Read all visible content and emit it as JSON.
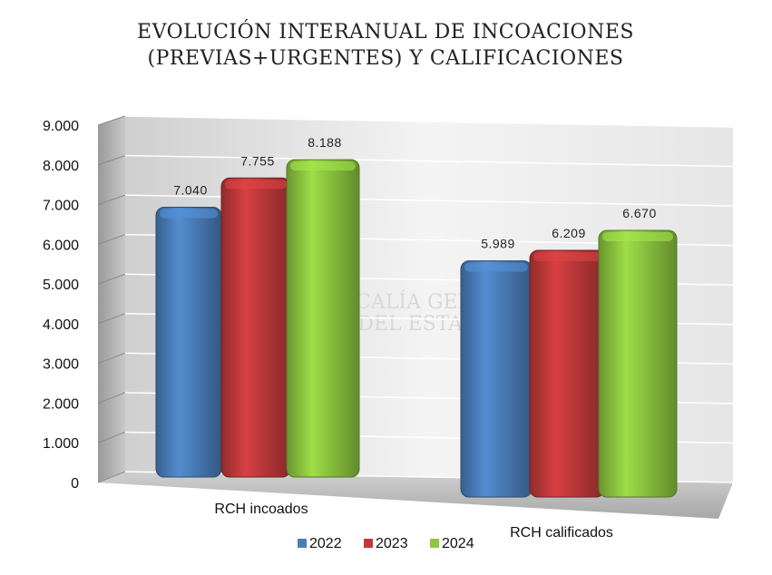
{
  "chart_data": {
    "type": "bar",
    "title_line1": "EVOLUCIÓN INTERANUAL DE INCOACIONES",
    "title_line2": "(PREVIAS+URGENTES) Y CALIFICACIONES",
    "categories": [
      "RCH incoados",
      "RCH calificados"
    ],
    "series": [
      {
        "name": "2022",
        "values": [
          7040,
          5989
        ],
        "labels": [
          "7.040",
          "5.989"
        ],
        "color": "#4a7ebb"
      },
      {
        "name": "2023",
        "values": [
          7755,
          6209
        ],
        "labels": [
          "7.755",
          "6.209"
        ],
        "color": "#c0393b"
      },
      {
        "name": "2024",
        "values": [
          8188,
          6670
        ],
        "labels": [
          "8.188",
          "6.670"
        ],
        "color": "#8dc63f"
      }
    ],
    "ylim": [
      0,
      9000
    ],
    "yticks": [
      0,
      1000,
      2000,
      3000,
      4000,
      5000,
      6000,
      7000,
      8000,
      9000
    ],
    "ytick_labels": [
      "0",
      "1.000",
      "2.000",
      "3.000",
      "4.000",
      "5.000",
      "6.000",
      "7.000",
      "8.000",
      "9.000"
    ],
    "grid": true,
    "legend_position": "bottom"
  }
}
